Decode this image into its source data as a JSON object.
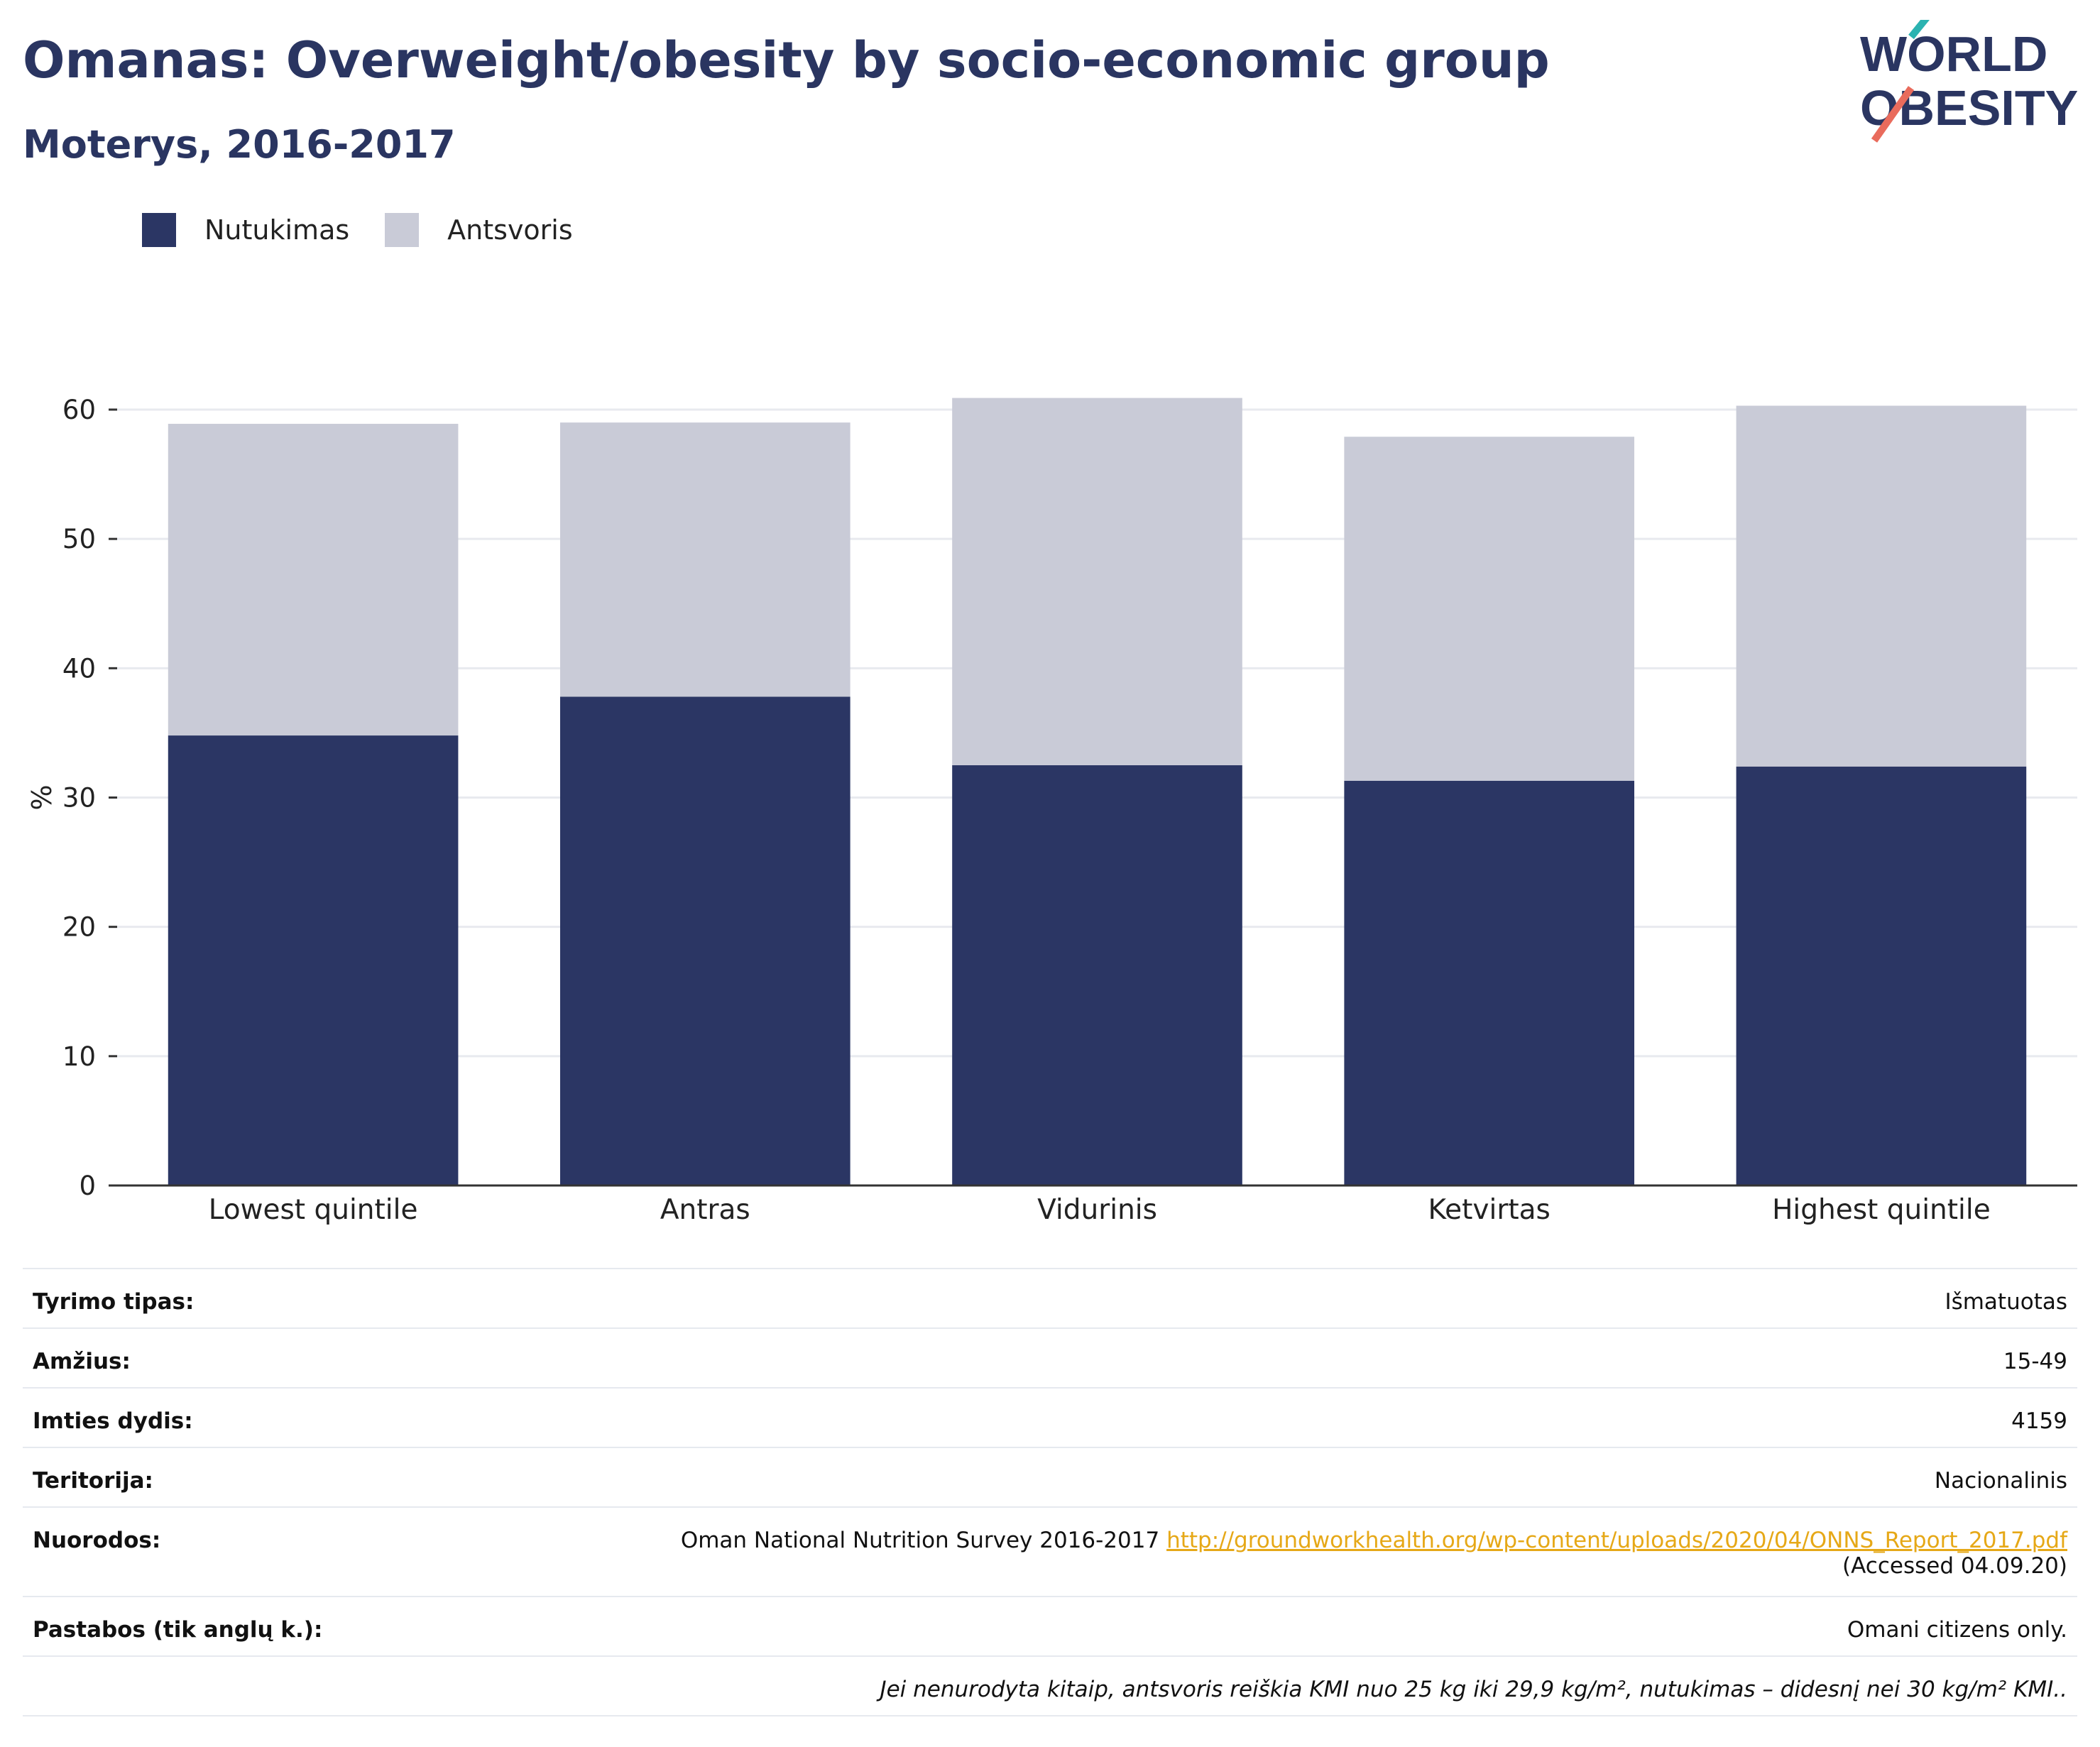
{
  "header": {
    "title": "Omanas: Overweight/obesity by socio-economic group",
    "subtitle": "Moterys, 2016-2017"
  },
  "logo": {
    "line1": "WORLD",
    "line2": "OBESITY"
  },
  "colors": {
    "obesity": "#2b3664",
    "overweight": "#c9cbd7",
    "title": "#2a3561",
    "link": "#e6a817"
  },
  "chart_data": {
    "type": "bar",
    "stacked": true,
    "categories": [
      "Lowest quintile",
      "Antras",
      "Vidurinis",
      "Ketvirtas",
      "Highest quintile"
    ],
    "series": [
      {
        "name": "Nutukimas",
        "values": [
          34.8,
          37.8,
          32.5,
          31.3,
          32.4
        ]
      },
      {
        "name": "Antsvoris",
        "values": [
          24.1,
          21.2,
          28.4,
          26.6,
          27.9
        ]
      }
    ],
    "ylabel": "%",
    "ylim": [
      0,
      60
    ],
    "yticks": [
      0,
      10,
      20,
      30,
      40,
      50,
      60
    ],
    "grid": true,
    "legend_position": "top-left"
  },
  "info": {
    "rows": [
      {
        "label": "Tyrimo tipas:",
        "value": "Išmatuotas"
      },
      {
        "label": "Amžius:",
        "value": "15-49"
      },
      {
        "label": "Imties dydis:",
        "value": "4159"
      },
      {
        "label": "Teritorija:",
        "value": "Nacionalinis"
      }
    ],
    "references": {
      "label": "Nuorodos:",
      "text": "Oman National Nutrition Survey 2016-2017",
      "link": "http://groundworkhealth.org/wp-content/uploads/2020/04/ONNS_Report_2017.pdf",
      "accessed": "(Accessed 04.09.20)"
    },
    "notes": {
      "label": "Pastabos (tik anglų k.):",
      "value": "Omani citizens only."
    },
    "footnote": "Jei nenurodyta kitaip, antsvoris reiškia KMI nuo 25 kg iki 29,9 kg/m², nutukimas – didesnį nei 30 kg/m² KMI.."
  }
}
